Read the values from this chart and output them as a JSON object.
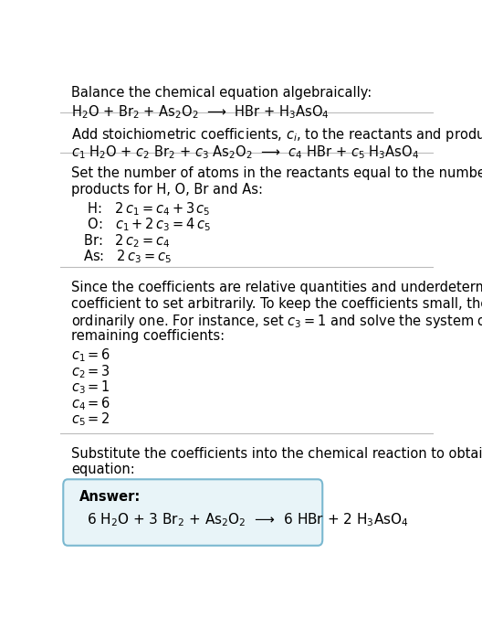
{
  "title": "Balance the chemical equation algebraically:",
  "equation_line1": "H$_2$O + Br$_2$ + As$_2$O$_2$  ⟶  HBr + H$_3$AsO$_4$",
  "section2_title": "Add stoichiometric coefficients, $c_i$, to the reactants and products:",
  "equation_line2": "$c_1$ H$_2$O + $c_2$ Br$_2$ + $c_3$ As$_2$O$_2$  ⟶  $c_4$ HBr + $c_5$ H$_3$AsO$_4$",
  "section3_title": "Set the number of atoms in the reactants equal to the number of atoms in the\nproducts for H, O, Br and As:",
  "equations": [
    " H:   $2\\,c_1 = c_4 + 3\\,c_5$",
    " O:   $c_1 + 2\\,c_3 = 4\\,c_5$",
    "Br:   $2\\,c_2 = c_4$",
    "As:   $2\\,c_3 = c_5$"
  ],
  "section4_text": "Since the coefficients are relative quantities and underdetermined, choose a\ncoefficient to set arbitrarily. To keep the coefficients small, the arbitrary value is\nordinarily one. For instance, set $c_3 = 1$ and solve the system of equations for the\nremaining coefficients:",
  "coefficients": [
    "$c_1 = 6$",
    "$c_2 = 3$",
    "$c_3 = 1$",
    "$c_4 = 6$",
    "$c_5 = 2$"
  ],
  "section5_text": "Substitute the coefficients into the chemical reaction to obtain the balanced\nequation:",
  "answer_label": "Answer:",
  "answer_equation": "6 H$_2$O + 3 Br$_2$ + As$_2$O$_2$  ⟶  6 HBr + 2 H$_3$AsO$_4$",
  "bg_color": "#ffffff",
  "text_color": "#000000",
  "box_bg": "#e8f4f8",
  "box_border": "#7ab8d0",
  "font_size": 10.5,
  "rule_color": "#bbbbbb",
  "rule_linewidth": 0.8
}
